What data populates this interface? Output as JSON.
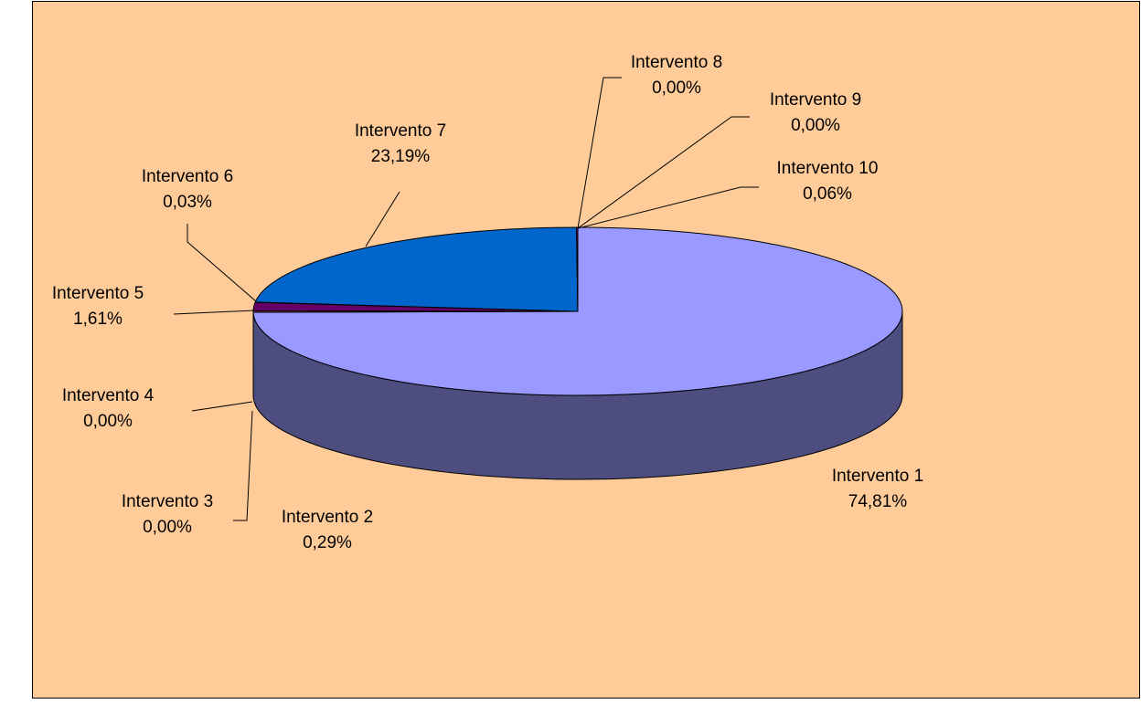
{
  "chart_data": {
    "type": "pie",
    "categories": [
      "Intervento 1",
      "Intervento 2",
      "Intervento 3",
      "Intervento 4",
      "Intervento 5",
      "Intervento 6",
      "Intervento 7",
      "Intervento 8",
      "Intervento 9",
      "Intervento 10"
    ],
    "values": [
      74.81,
      0.29,
      0.0,
      0.0,
      1.61,
      0.03,
      23.19,
      0.0,
      0.0,
      0.06
    ],
    "value_labels": [
      "74,81%",
      "0,29%",
      "0,00%",
      "0,00%",
      "1,61%",
      "0,03%",
      "23,19%",
      "0,00%",
      "0,00%",
      "0,06%"
    ],
    "colors": [
      "#9999ff",
      "#993366",
      "#ffffcc",
      "#ccffff",
      "#660066",
      "#ff8080",
      "#0066cc",
      "#ccccff",
      "#000080",
      "#ff00ff"
    ]
  }
}
